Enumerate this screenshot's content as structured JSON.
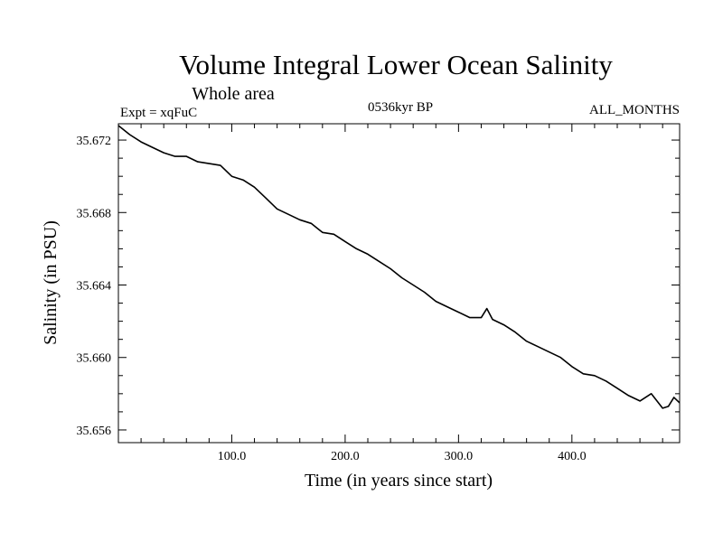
{
  "chart_data": {
    "type": "line",
    "title": "Volume Integral Lower Ocean Salinity",
    "subtitle": "Whole area",
    "left_label": "Expt = xqFuC",
    "center_label": "0536kyr BP",
    "right_label": "ALL_MONTHS",
    "xlabel": "Time (in years since start)",
    "ylabel": "Salinity (in PSU)",
    "xlim": [
      0,
      495
    ],
    "ylim": [
      35.6553,
      35.6729
    ],
    "xticks": [
      100,
      200,
      300,
      400
    ],
    "xtick_labels": [
      "100.0",
      "200.0",
      "300.0",
      "400.0"
    ],
    "yticks": [
      35.656,
      35.66,
      35.664,
      35.668,
      35.672
    ],
    "ytick_labels": [
      "35.656",
      "35.660",
      "35.664",
      "35.668",
      "35.672"
    ],
    "grid": false,
    "series": [
      {
        "name": "salinity",
        "x": [
          0,
          10,
          20,
          30,
          40,
          50,
          60,
          70,
          80,
          90,
          100,
          110,
          120,
          130,
          140,
          150,
          160,
          170,
          180,
          190,
          200,
          210,
          220,
          230,
          240,
          250,
          260,
          270,
          280,
          290,
          300,
          310,
          320,
          325,
          330,
          340,
          350,
          360,
          370,
          380,
          390,
          400,
          410,
          420,
          430,
          440,
          450,
          460,
          470,
          480,
          485,
          490,
          495
        ],
        "y": [
          35.6728,
          35.6723,
          35.6719,
          35.6716,
          35.6713,
          35.6711,
          35.6711,
          35.6708,
          35.6707,
          35.6706,
          35.67,
          35.6698,
          35.6694,
          35.6688,
          35.6682,
          35.6679,
          35.6676,
          35.6674,
          35.6669,
          35.6668,
          35.6664,
          35.666,
          35.6657,
          35.6653,
          35.6649,
          35.6644,
          35.664,
          35.6636,
          35.6631,
          35.6628,
          35.6625,
          35.6622,
          35.6622,
          35.6627,
          35.6621,
          35.6618,
          35.6614,
          35.6609,
          35.6606,
          35.6603,
          35.66,
          35.6595,
          35.6591,
          35.659,
          35.6587,
          35.6583,
          35.6579,
          35.6576,
          35.658,
          35.6572,
          35.6573,
          35.6578,
          35.6575
        ]
      }
    ]
  }
}
